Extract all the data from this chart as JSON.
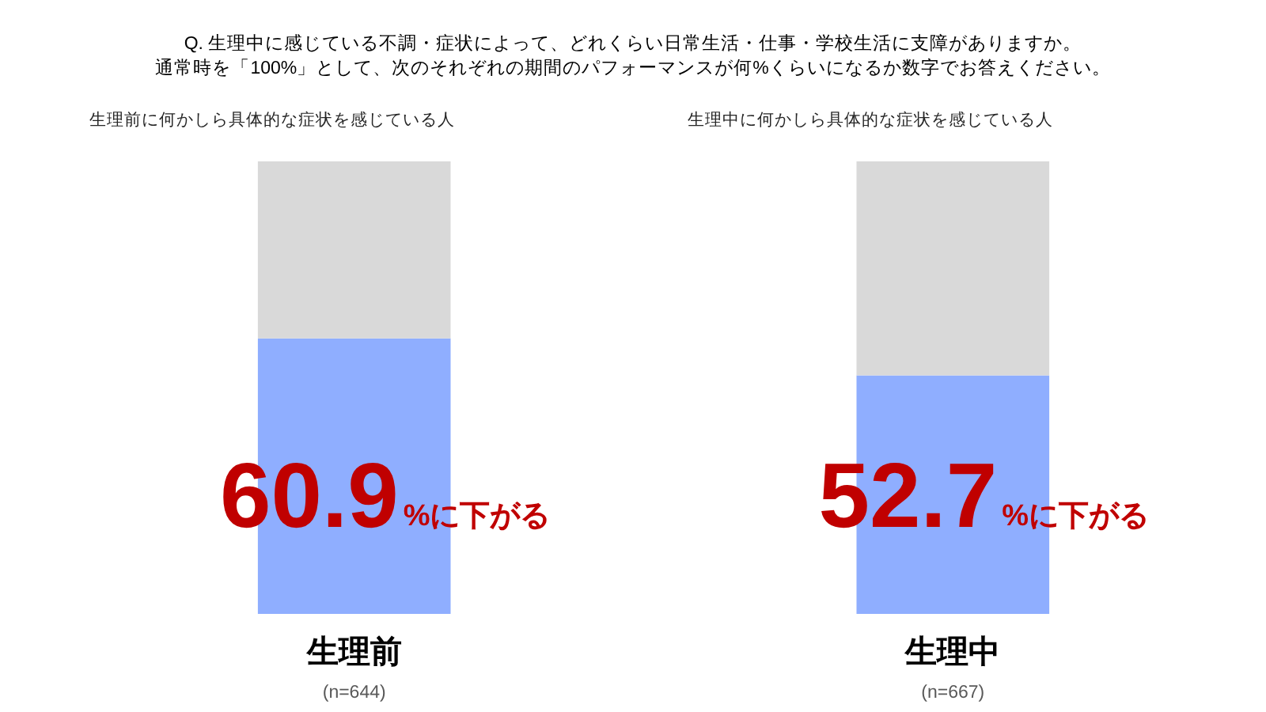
{
  "chart_data": {
    "type": "bar",
    "title": "Q. 生理中に感じている不調・症状によって、どれくらい日常生活・仕事・学校生活に支障がありますか。",
    "subtitle": "通常時を「100%」として、次のそれぞれの期間のパフォーマンスが何%くらいになるか数字でお答えください。",
    "categories": [
      "生理前",
      "生理中"
    ],
    "stacked": true,
    "series": [
      {
        "color": "#8faeff",
        "values": [
          60.9,
          52.7
        ],
        "value_labels": [
          "60.9",
          "52.7"
        ]
      },
      {
        "color": "#d9d9d9",
        "values": [
          39.1,
          47.3
        ]
      }
    ],
    "ylim": [
      0,
      100
    ],
    "tick_labels": "x",
    "annotations": [
      "生理前に何かしら具体的な症状を感じている人",
      "生理中に何かしら具体的な症状を感じている人",
      "(n=644)",
      "(n=667)",
      "%に下がる",
      "%に下がる"
    ]
  }
}
